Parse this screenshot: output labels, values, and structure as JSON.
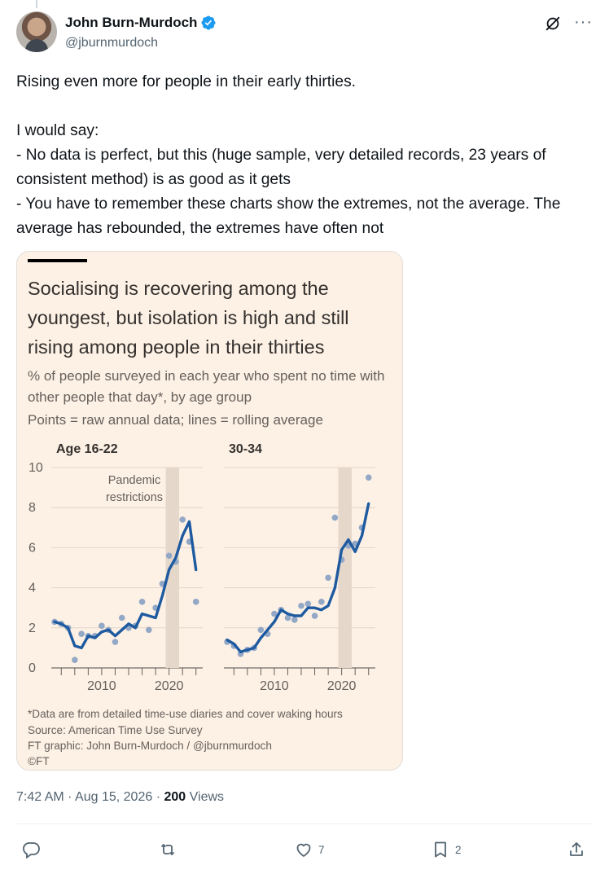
{
  "author": {
    "name": "John Burn-Murdoch",
    "handle": "@jburnmurdoch",
    "verified": true,
    "avatar_icon": "profile-photo"
  },
  "tweet": {
    "line1": "Rising even more for people in their early thirties.",
    "line2": "I would say:\n- No data is perfect, but this (huge sample, very detailed records, 23 years of consistent method) is as good as it gets\n- You have to remember these charts show the extremes, not the average. The average has rebounded, the extremes have often not"
  },
  "media": {
    "title": "Socialising is recovering among the youngest, but isolation is high and still rising among people in their thirties",
    "subtitle": "% of people surveyed in each year who spent no time with other people that day*, by age group",
    "note": "Points = raw annual data; lines = rolling average",
    "footnotes": [
      "*Data are from detailed time-use diaries and cover waking hours",
      "Source: American Time Use Survey",
      "FT graphic: John Burn-Murdoch / @jburnmurdoch",
      "©FT"
    ]
  },
  "chart_data": [
    {
      "type": "line",
      "title": "Age 16-22",
      "annotation": "Pandemic\nrestrictions",
      "shaded_range": [
        2019.5,
        2021.5
      ],
      "ylim": [
        0,
        10
      ],
      "yticks": [
        0,
        2,
        4,
        6,
        8,
        10
      ],
      "xlim": [
        2003,
        2025
      ],
      "xticks_labeled": [
        2010,
        2020
      ],
      "points_x": [
        2003,
        2004,
        2005,
        2006,
        2007,
        2008,
        2009,
        2010,
        2011,
        2012,
        2013,
        2014,
        2015,
        2016,
        2017,
        2018,
        2019,
        2020,
        2021,
        2022,
        2023,
        2024
      ],
      "points_y": [
        2.3,
        2.2,
        2.0,
        0.4,
        1.7,
        1.6,
        1.6,
        2.1,
        1.9,
        1.3,
        2.5,
        2.0,
        2.1,
        3.3,
        1.9,
        3.0,
        4.2,
        5.6,
        5.3,
        7.4,
        6.3,
        3.3
      ],
      "line_x": [
        2003,
        2004,
        2005,
        2006,
        2007,
        2008,
        2009,
        2010,
        2011,
        2012,
        2013,
        2014,
        2015,
        2016,
        2017,
        2018,
        2019,
        2020,
        2021,
        2022,
        2023,
        2024
      ],
      "line_y": [
        2.3,
        2.2,
        2.0,
        1.1,
        1.0,
        1.6,
        1.5,
        1.8,
        1.9,
        1.6,
        1.9,
        2.2,
        2.0,
        2.7,
        2.6,
        2.5,
        3.6,
        4.9,
        5.5,
        6.6,
        7.3,
        4.9
      ]
    },
    {
      "type": "line",
      "title": "30-34",
      "shaded_range": [
        2019.5,
        2021.5
      ],
      "ylim": [
        0,
        10
      ],
      "xlim": [
        2003,
        2025
      ],
      "xticks_labeled": [
        2010,
        2020
      ],
      "points_x": [
        2003,
        2004,
        2005,
        2006,
        2007,
        2008,
        2009,
        2010,
        2011,
        2012,
        2013,
        2014,
        2015,
        2016,
        2017,
        2018,
        2019,
        2020,
        2021,
        2022,
        2023,
        2024
      ],
      "points_y": [
        1.3,
        1.1,
        0.7,
        0.9,
        1.0,
        1.9,
        1.7,
        2.7,
        2.9,
        2.5,
        2.4,
        3.1,
        3.2,
        2.6,
        3.3,
        4.5,
        7.5,
        5.4,
        6.1,
        6.2,
        7.0,
        9.5
      ],
      "line_x": [
        2003,
        2004,
        2005,
        2006,
        2007,
        2008,
        2009,
        2010,
        2011,
        2012,
        2013,
        2014,
        2015,
        2016,
        2017,
        2018,
        2019,
        2020,
        2021,
        2022,
        2023,
        2024
      ],
      "line_y": [
        1.4,
        1.2,
        0.8,
        0.9,
        1.0,
        1.5,
        1.9,
        2.3,
        2.9,
        2.7,
        2.6,
        2.6,
        3.0,
        3.0,
        2.9,
        3.1,
        4.0,
        5.9,
        6.4,
        5.8,
        6.6,
        8.2
      ]
    }
  ],
  "meta": {
    "time": "7:42 AM",
    "separator": "·",
    "date": "Aug 15, 2026",
    "views_count": "200",
    "views_label": "Views"
  },
  "actions": {
    "reply_count": "",
    "retweet_count": "",
    "like_count": "7",
    "bookmark_count": "2"
  },
  "colors": {
    "accent": "#1d9bf0",
    "line": "#1e5aa0",
    "points": "#93a8c6",
    "shade": "#e6d7cb",
    "background": "#fdf1e5"
  }
}
